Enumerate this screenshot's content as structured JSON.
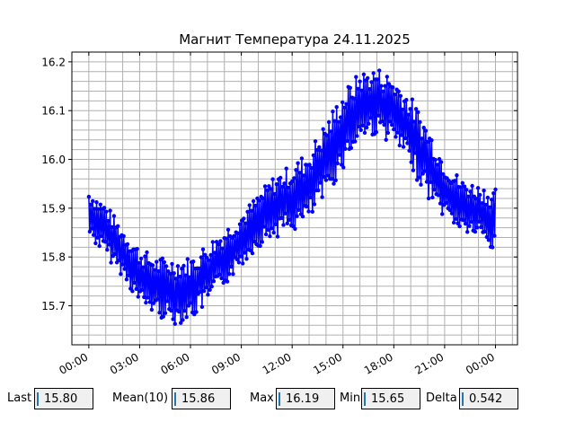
{
  "chart_data": {
    "type": "line",
    "title": "Магнит Температура 24.11.2025",
    "xlabel": "",
    "ylabel": "",
    "x_tick_labels": [
      "00:00",
      "03:00",
      "06:00",
      "09:00",
      "12:00",
      "15:00",
      "18:00",
      "21:00",
      "00:00"
    ],
    "x_range_hours": [
      -1.0,
      25.3
    ],
    "y_ticks": [
      "15.7",
      "15.8",
      "15.9",
      "16.0",
      "16.1",
      "16.2"
    ],
    "ylim": [
      15.62,
      16.22
    ],
    "grid": true,
    "series": [
      {
        "color": "#0000ff",
        "marker": "circle",
        "x_hours": [
          0,
          1,
          2,
          3,
          4,
          5,
          6,
          7,
          8,
          9,
          10,
          11,
          12,
          13,
          14,
          15,
          16,
          17,
          18,
          19,
          20,
          21,
          22,
          23,
          24
        ],
        "y_low": [
          15.84,
          15.8,
          15.76,
          15.7,
          15.68,
          15.66,
          15.67,
          15.7,
          15.74,
          15.78,
          15.82,
          15.84,
          15.85,
          15.87,
          15.92,
          15.98,
          16.04,
          16.05,
          16.03,
          15.98,
          15.92,
          15.88,
          15.85,
          15.84,
          15.8
        ],
        "y_high": [
          15.94,
          15.91,
          15.86,
          15.82,
          15.8,
          15.8,
          15.8,
          15.83,
          15.86,
          15.89,
          15.93,
          15.97,
          15.99,
          16.02,
          16.08,
          16.14,
          16.18,
          16.19,
          16.17,
          16.13,
          16.07,
          16.0,
          15.96,
          15.95,
          15.94
        ]
      }
    ]
  },
  "stats": [
    {
      "label": "Last",
      "value": "15.80"
    },
    {
      "label": "Mean(10)",
      "value": "15.86"
    },
    {
      "label": "Max",
      "value": "16.19"
    },
    {
      "label": "Min",
      "value": "15.65"
    },
    {
      "label": "Delta",
      "value": "0.542"
    }
  ]
}
